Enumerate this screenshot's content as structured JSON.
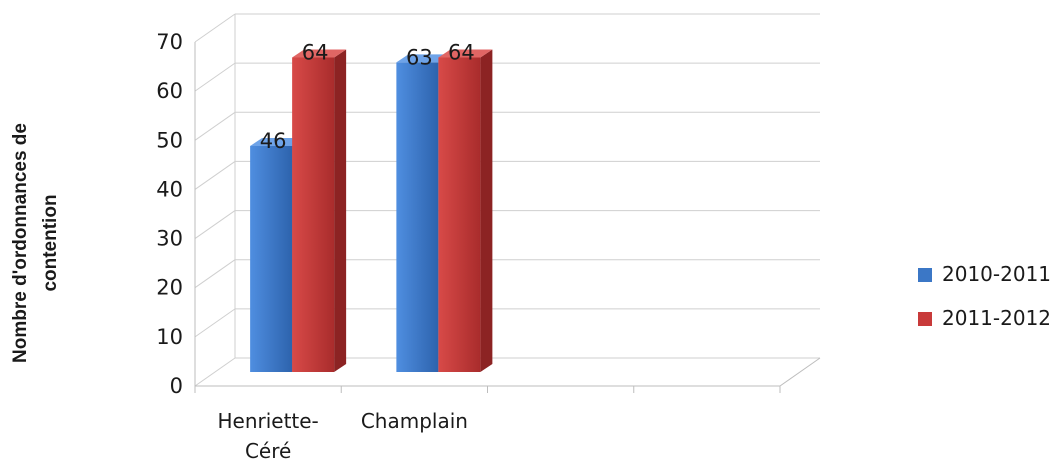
{
  "chart_data": {
    "type": "bar",
    "style": "3d-clustered-column",
    "categories": [
      "Henriette-Céré",
      "Champlain",
      "",
      ""
    ],
    "category_lines": [
      [
        "Henriette-",
        "Céré"
      ],
      [
        "Champlain"
      ],
      [
        ""
      ],
      [
        ""
      ]
    ],
    "series": [
      {
        "name": "2010-2011",
        "values": [
          46,
          63,
          null,
          null
        ],
        "color": "#3b77c6"
      },
      {
        "name": "2011-2012",
        "values": [
          64,
          64,
          null,
          null
        ],
        "color": "#c83a3a"
      }
    ],
    "ylabel_lines": [
      "Nombre d'ordonnances de",
      "contention"
    ],
    "xlabel": "",
    "ylim": [
      0,
      70
    ],
    "yticks": [
      "0",
      "10",
      "20",
      "30",
      "40",
      "50",
      "60",
      "70"
    ],
    "data_labels": true,
    "grid": true,
    "legend": "right"
  }
}
